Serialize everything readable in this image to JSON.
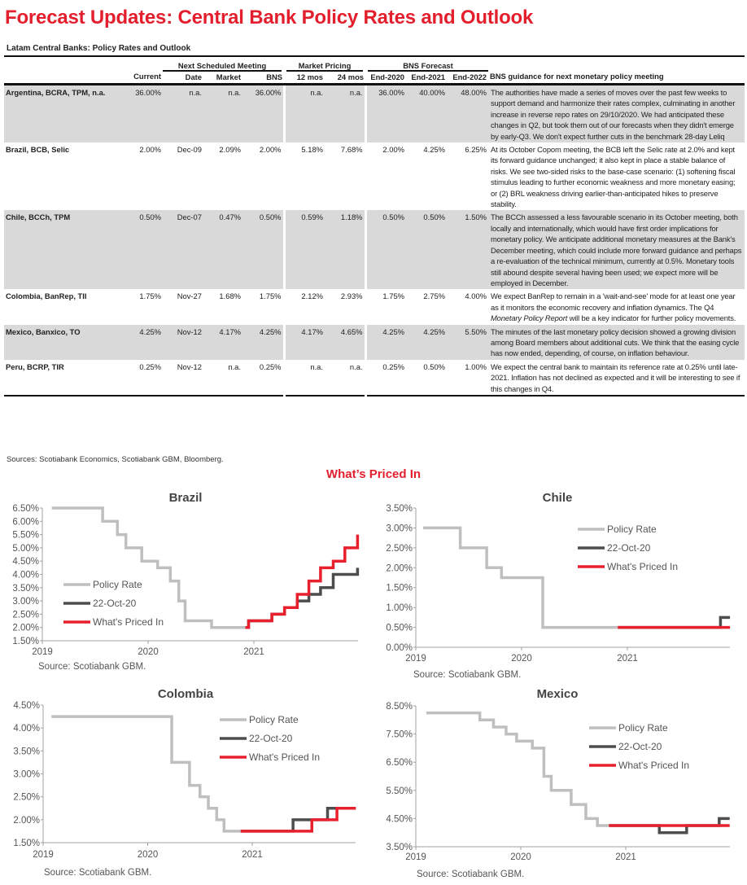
{
  "title": "Forecast Updates: Central Bank Policy Rates and Outlook",
  "table": {
    "caption": "Latam Central Banks: Policy Rates and Outlook",
    "group_headers": {
      "meeting": "Next Scheduled Meeting",
      "market": "Market Pricing",
      "forecast": "BNS Forecast"
    },
    "columns": [
      "",
      "Current",
      "Date",
      "Market",
      "BNS",
      "12 mos",
      "24 mos",
      "End-2020",
      "End-2021",
      "End-2022",
      "BNS guidance for next monetary policy meeting"
    ],
    "rows": [
      {
        "name": "Argentina, BCRA, TPM, n.a.",
        "current": "36.00%",
        "date": "n.a.",
        "market": "n.a.",
        "bns": "36.00%",
        "m12": "n.a.",
        "m24": "n.a.",
        "e2020": "36.00%",
        "e2021": "40.00%",
        "e2022": "48.00%",
        "shaded": true,
        "guidance": [
          {
            "text": "The authorities have made a series of moves over the past few weeks to support demand and harmonize their rates complex, culminating in another increase in reverse repo rates on 29/10/2020. We had anticipated these changes in Q2, but took them out of our forecasts when they didn't emerge by early-Q3. We don't expect further cuts in the benchmark 28-day Leliq",
            "italic": false
          }
        ]
      },
      {
        "name": "Brazil, BCB, Selic",
        "current": "2.00%",
        "date": "Dec-09",
        "market": "2.09%",
        "bns": "2.00%",
        "m12": "5.18%",
        "m24": "7.68%",
        "e2020": "2.00%",
        "e2021": "4.25%",
        "e2022": "6.25%",
        "shaded": false,
        "guidance": [
          {
            "text": "At its October Copom meeting, the BCB left the Selic rate at 2.0% and kept its forward guidance unchanged; it also kept in place a stable balance of risks. We see two-sided risks to the base-case scenario: (1) softening fiscal stimulus leading to further economic weakness and more monetary easing; or (2) BRL weakness driving earlier-than-anticipated hikes to preserve stability.",
            "italic": false
          }
        ]
      },
      {
        "name": "Chile, BCCh, TPM",
        "current": "0.50%",
        "date": "Dec-07",
        "market": "0.47%",
        "bns": "0.50%",
        "m12": "0.59%",
        "m24": "1.18%",
        "e2020": "0.50%",
        "e2021": "0.50%",
        "e2022": "1.50%",
        "shaded": true,
        "guidance": [
          {
            "text": "The BCCh assessed a less favourable scenario in its October meeting, both locally and internationally, which would have first order implications for monetary policy. We anticipate additional monetary measures at the Bank's December meeting, which could include more forward guidance and perhaps a re-evaluation of the technical minimum, currently at 0.5%. Monetary tools still abound despite several having been used; we expect more will be employed in December.",
            "italic": false
          }
        ]
      },
      {
        "name": "Colombia, BanRep, TII",
        "current": "1.75%",
        "date": "Nov-27",
        "market": "1.68%",
        "bns": "1.75%",
        "m12": "2.12%",
        "m24": "2.93%",
        "e2020": "1.75%",
        "e2021": "2.75%",
        "e2022": "4.00%",
        "shaded": false,
        "guidance": [
          {
            "text": "We expect BanRep to remain in a 'wait-and-see' mode for at least one year as it monitors the economic recovery and inflation dynamics. The Q4 ",
            "italic": false
          },
          {
            "text": "Monetary Policy Report",
            "italic": true
          },
          {
            "text": " will be a key indicator for further policy movements.",
            "italic": false
          }
        ]
      },
      {
        "name": "Mexico, Banxico, TO",
        "current": "4.25%",
        "date": "Nov-12",
        "market": "4.17%",
        "bns": "4.25%",
        "m12": "4.17%",
        "m24": "4.65%",
        "e2020": "4.25%",
        "e2021": "4.25%",
        "e2022": "5.50%",
        "shaded": true,
        "guidance": [
          {
            "text": "The minutes of the last monetary policy decision showed a growing division among Board members about additional cuts. We think that the easing cycle has now ended, depending, of course, on inflation behaviour.",
            "italic": false
          }
        ]
      },
      {
        "name": "Peru, BCRP, TIR",
        "current": "0.25%",
        "date": "Nov-12",
        "market": "n.a.",
        "bns": "0.25%",
        "m12": "n.a.",
        "m24": "n.a.",
        "e2020": "0.25%",
        "e2021": "0.50%",
        "e2022": "1.00%",
        "shaded": false,
        "guidance": [
          {
            "text": "We expect the central bank to maintain its reference rate at 0.25% until late-2021. Inflation has not declined as expected and it will be interesting to see if this changes in Q4.",
            "italic": false
          }
        ]
      }
    ],
    "sources": "Sources: Scotiabank Economics, Scotiabank GBM, Bloomberg."
  },
  "section_title": "What’s Priced In",
  "colors": {
    "accent": "#e41f2d",
    "policy": "#bfbfbf",
    "oct22": "#4d4d4d",
    "priced": "#e8202e"
  },
  "chart_data": [
    {
      "type": "line",
      "title": "Brazil",
      "source": "Source: Scotiabank GBM.",
      "ylim": [
        1.5,
        6.5
      ],
      "ystep": 0.5,
      "xlim": [
        2019,
        2021.98
      ],
      "xticks": [
        "2019",
        "2020",
        "2021"
      ],
      "legend_position": "center-left",
      "series": [
        {
          "name": "Policy Rate",
          "steps": [
            [
              2019.09,
              6.5
            ],
            [
              2019.57,
              6.0
            ],
            [
              2019.71,
              5.5
            ],
            [
              2019.79,
              5.0
            ],
            [
              2019.94,
              4.5
            ],
            [
              2020.09,
              4.25
            ],
            [
              2020.21,
              3.75
            ],
            [
              2020.29,
              3.0
            ],
            [
              2020.35,
              2.25
            ],
            [
              2020.6,
              2.0
            ]
          ],
          "end": 2020.92
        },
        {
          "name": "22-Oct-20",
          "steps": [
            [
              2020.92,
              2.0
            ],
            [
              2020.95,
              2.25
            ],
            [
              2021.17,
              2.5
            ],
            [
              2021.29,
              2.75
            ],
            [
              2021.41,
              3.0
            ],
            [
              2021.52,
              3.25
            ],
            [
              2021.63,
              3.5
            ],
            [
              2021.75,
              4.0
            ],
            [
              2021.98,
              4.25
            ]
          ],
          "end": 2021.98
        },
        {
          "name": "What's Priced In",
          "steps": [
            [
              2020.92,
              2.0
            ],
            [
              2020.95,
              2.25
            ],
            [
              2021.17,
              2.5
            ],
            [
              2021.29,
              2.75
            ],
            [
              2021.41,
              3.25
            ],
            [
              2021.52,
              3.75
            ],
            [
              2021.63,
              4.25
            ],
            [
              2021.75,
              4.5
            ],
            [
              2021.86,
              5.0
            ],
            [
              2021.98,
              5.5
            ]
          ],
          "end": 2021.98
        }
      ]
    },
    {
      "type": "line",
      "title": "Chile",
      "source": "Source: Scotiabank GBM.",
      "ylim": [
        0,
        3.5
      ],
      "ystep": 0.5,
      "xlim": [
        2019,
        2021.97
      ],
      "xticks": [
        "2019",
        "2020",
        "2021"
      ],
      "legend_position": "top-right",
      "series": [
        {
          "name": "Policy Rate",
          "steps": [
            [
              2019.07,
              3.0
            ],
            [
              2019.42,
              2.5
            ],
            [
              2019.67,
              2.0
            ],
            [
              2019.81,
              1.75
            ],
            [
              2020.2,
              0.5
            ]
          ],
          "end": 2020.91
        },
        {
          "name": "22-Oct-20",
          "steps": [
            [
              2020.91,
              0.5
            ],
            [
              2021.88,
              0.75
            ]
          ],
          "end": 2021.97
        },
        {
          "name": "What's Priced In",
          "steps": [
            [
              2020.91,
              0.5
            ]
          ],
          "end": 2021.97
        }
      ]
    },
    {
      "type": "line",
      "title": "Colombia",
      "source": "Source: Scotiabank GBM.",
      "ylim": [
        1.5,
        4.5
      ],
      "ystep": 0.5,
      "xlim": [
        2019,
        2021.99
      ],
      "xticks": [
        "2019",
        "2020",
        "2021"
      ],
      "legend_position": "top-right",
      "series": [
        {
          "name": "Policy Rate",
          "steps": [
            [
              2019.08,
              4.25
            ],
            [
              2020.23,
              3.25
            ],
            [
              2020.4,
              2.75
            ],
            [
              2020.5,
              2.5
            ],
            [
              2020.58,
              2.25
            ],
            [
              2020.66,
              2.0
            ],
            [
              2020.73,
              1.75
            ]
          ],
          "end": 2020.89
        },
        {
          "name": "22-Oct-20",
          "steps": [
            [
              2020.89,
              1.75
            ],
            [
              2021.39,
              2.0
            ],
            [
              2021.72,
              2.25
            ]
          ],
          "end": 2021.99
        },
        {
          "name": "What's Priced In",
          "steps": [
            [
              2020.89,
              1.75
            ],
            [
              2021.57,
              2.0
            ],
            [
              2021.81,
              2.25
            ]
          ],
          "end": 2021.99
        }
      ]
    },
    {
      "type": "line",
      "title": "Mexico",
      "source": "Source: Scotiabank GBM.",
      "ylim": [
        3.5,
        8.5
      ],
      "ystep": 1.0,
      "xlim": [
        2019,
        2021.99
      ],
      "xticks": [
        "2019",
        "2020",
        "2021"
      ],
      "legend_position": "top-right",
      "series": [
        {
          "name": "Policy Rate",
          "steps": [
            [
              2019.1,
              8.25
            ],
            [
              2019.61,
              8.0
            ],
            [
              2019.74,
              7.75
            ],
            [
              2019.86,
              7.5
            ],
            [
              2019.96,
              7.25
            ],
            [
              2020.11,
              7.0
            ],
            [
              2020.22,
              6.0
            ],
            [
              2020.29,
              5.5
            ],
            [
              2020.48,
              5.0
            ],
            [
              2020.62,
              4.5
            ],
            [
              2020.73,
              4.25
            ]
          ],
          "end": 2020.84
        },
        {
          "name": "22-Oct-20",
          "steps": [
            [
              2020.84,
              4.25
            ],
            [
              2021.32,
              4.0
            ],
            [
              2021.58,
              4.25
            ],
            [
              2021.89,
              4.5
            ]
          ],
          "end": 2021.99
        },
        {
          "name": "What's Priced In",
          "steps": [
            [
              2020.84,
              4.25
            ]
          ],
          "end": 2021.99
        }
      ]
    }
  ]
}
